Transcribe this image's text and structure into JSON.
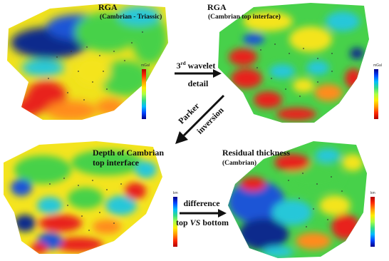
{
  "panels": {
    "rga_full": {
      "title": "RGA",
      "subtitle": "(Cambrian - Triassic)",
      "unit": "mGal"
    },
    "rga_top": {
      "title": "RGA",
      "subtitle": "(Cambrian top interface)",
      "unit": "mGal"
    },
    "depth": {
      "title": "Depth of Cambrian",
      "title_line2": "top interface",
      "unit": "km"
    },
    "thickness": {
      "title": "Residual thickness",
      "subtitle": "(Cambrian)",
      "unit": "km"
    }
  },
  "arrows": {
    "wavelet": {
      "line1_num": "3",
      "line1_sup": "rd",
      "line1_rest": " wavelet",
      "line2": "detail"
    },
    "parker": {
      "line1": "Parker",
      "line2": "inversion"
    },
    "difference": {
      "line1": "difference",
      "line2_a": "top ",
      "line2_b": "VS",
      "line2_c": " bottom"
    }
  },
  "colors": {
    "red": "#e8231a",
    "orange": "#ff8c1a",
    "yellow": "#f4e41e",
    "green": "#47d14a",
    "cyan": "#25c7d9",
    "blue": "#1f55d6",
    "navy": "#0d2a8c"
  }
}
